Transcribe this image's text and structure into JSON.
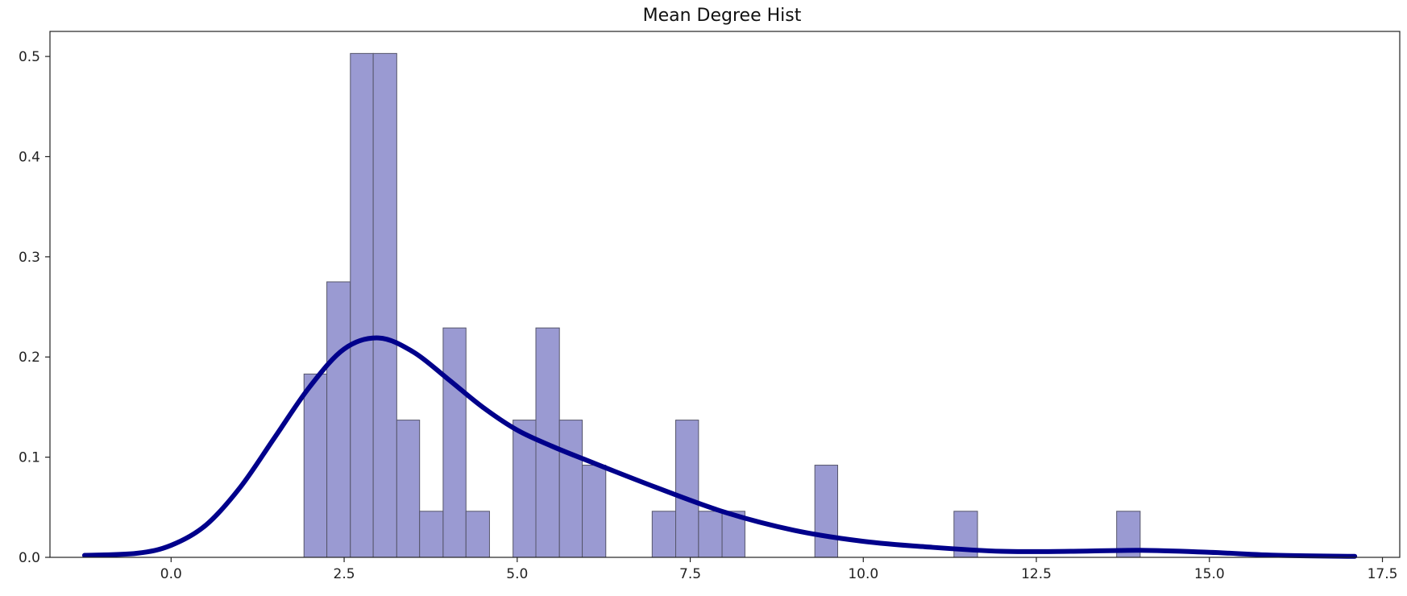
{
  "chart_data": {
    "type": "bar",
    "title": "Mean Degree Hist",
    "xlabel": "",
    "ylabel": "",
    "xlim": [
      -1.75,
      17.75
    ],
    "ylim": [
      0,
      0.525
    ],
    "x_ticks": [
      0.0,
      2.5,
      5.0,
      7.5,
      10.0,
      12.5,
      15.0,
      17.5
    ],
    "x_tick_labels": [
      "0.0",
      "2.5",
      "5.0",
      "7.5",
      "10.0",
      "12.5",
      "15.0",
      "17.5"
    ],
    "y_ticks": [
      0.0,
      0.1,
      0.2,
      0.3,
      0.4,
      0.5
    ],
    "y_tick_labels": [
      "0.0",
      "0.1",
      "0.2",
      "0.3",
      "0.4",
      "0.5"
    ],
    "grid": false,
    "bar_color": "#9a9ad2",
    "bar_edge_color": "#55556a",
    "line_color": "#00008b",
    "bins": [
      {
        "x0": 1.92,
        "x1": 2.25,
        "density": 0.183
      },
      {
        "x0": 2.25,
        "x1": 2.59,
        "density": 0.275
      },
      {
        "x0": 2.59,
        "x1": 2.92,
        "density": 0.503
      },
      {
        "x0": 2.92,
        "x1": 3.26,
        "density": 0.503
      },
      {
        "x0": 3.26,
        "x1": 3.59,
        "density": 0.137
      },
      {
        "x0": 3.59,
        "x1": 3.93,
        "density": 0.046
      },
      {
        "x0": 3.93,
        "x1": 4.26,
        "density": 0.229
      },
      {
        "x0": 4.26,
        "x1": 4.6,
        "density": 0.046
      },
      {
        "x0": 4.94,
        "x1": 5.27,
        "density": 0.137
      },
      {
        "x0": 5.27,
        "x1": 5.61,
        "density": 0.229
      },
      {
        "x0": 5.61,
        "x1": 5.94,
        "density": 0.137
      },
      {
        "x0": 5.94,
        "x1": 6.28,
        "density": 0.092
      },
      {
        "x0": 6.95,
        "x1": 7.29,
        "density": 0.046
      },
      {
        "x0": 7.29,
        "x1": 7.62,
        "density": 0.137
      },
      {
        "x0": 7.62,
        "x1": 7.96,
        "density": 0.046
      },
      {
        "x0": 7.96,
        "x1": 8.29,
        "density": 0.046
      },
      {
        "x0": 9.3,
        "x1": 9.63,
        "density": 0.092
      },
      {
        "x0": 11.31,
        "x1": 11.65,
        "density": 0.046
      },
      {
        "x0": 13.66,
        "x1": 14.0,
        "density": 0.046
      }
    ],
    "kde": {
      "x": [
        -1.25,
        -0.5,
        0.0,
        0.5,
        1.0,
        1.5,
        2.0,
        2.5,
        3.0,
        3.5,
        4.0,
        4.5,
        5.0,
        5.5,
        6.0,
        7.0,
        8.0,
        9.0,
        10.0,
        11.0,
        12.0,
        13.0,
        14.0,
        15.0,
        16.0,
        17.1
      ],
      "y": [
        0.002,
        0.004,
        0.012,
        0.032,
        0.07,
        0.12,
        0.17,
        0.208,
        0.219,
        0.205,
        0.178,
        0.15,
        0.127,
        0.111,
        0.097,
        0.07,
        0.045,
        0.027,
        0.016,
        0.01,
        0.006,
        0.006,
        0.007,
        0.005,
        0.002,
        0.001
      ]
    }
  }
}
